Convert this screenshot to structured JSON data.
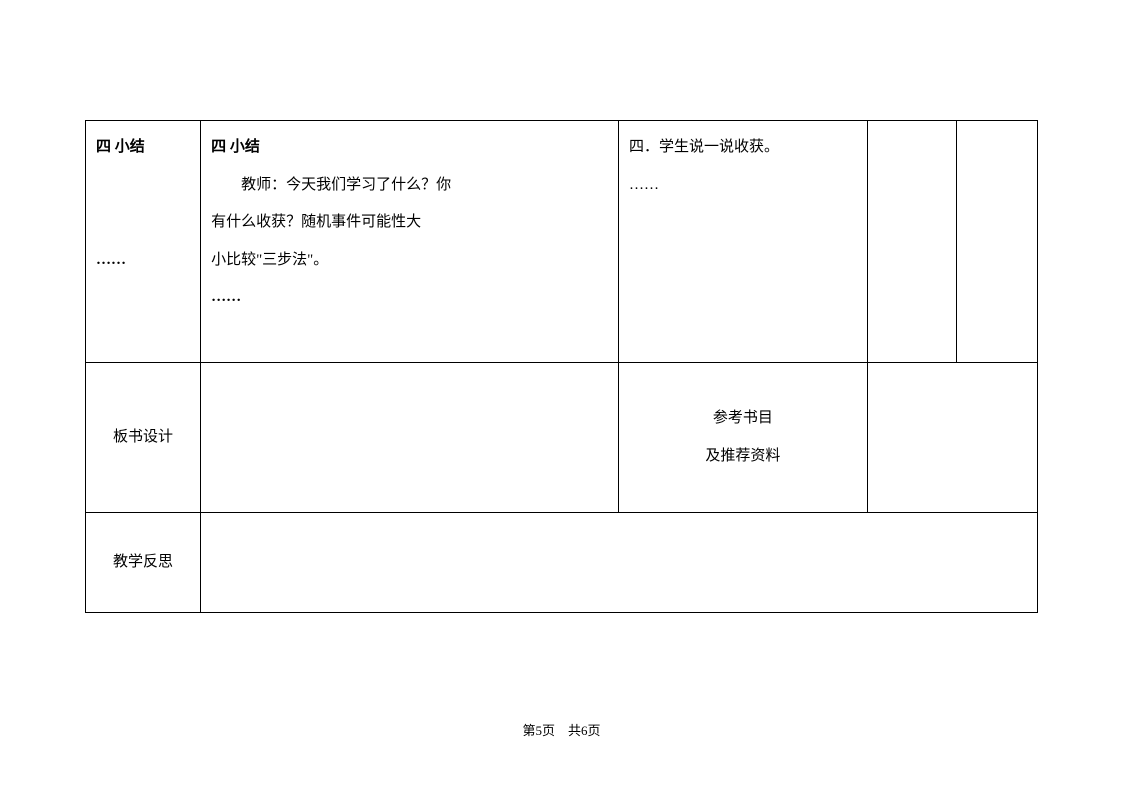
{
  "table": {
    "row1": {
      "col1_title": "四 小结",
      "col1_dots": "……",
      "col2_title": "四 小结",
      "col2_line1": "教师：今天我们学习了什么？你",
      "col2_line2": "有什么收获？随机事件可能性大",
      "col2_line3": "小比较\"三步法\"。",
      "col2_dots": "……",
      "col3_line1": "四．学生说一说收获。",
      "col3_dots": "……"
    },
    "row2": {
      "col1": "板书设计",
      "col3_line1": "参考书目",
      "col3_line2": "及推荐资料"
    },
    "row3": {
      "col1": "教学反思"
    }
  },
  "footer": {
    "text": "第5页　共6页"
  }
}
